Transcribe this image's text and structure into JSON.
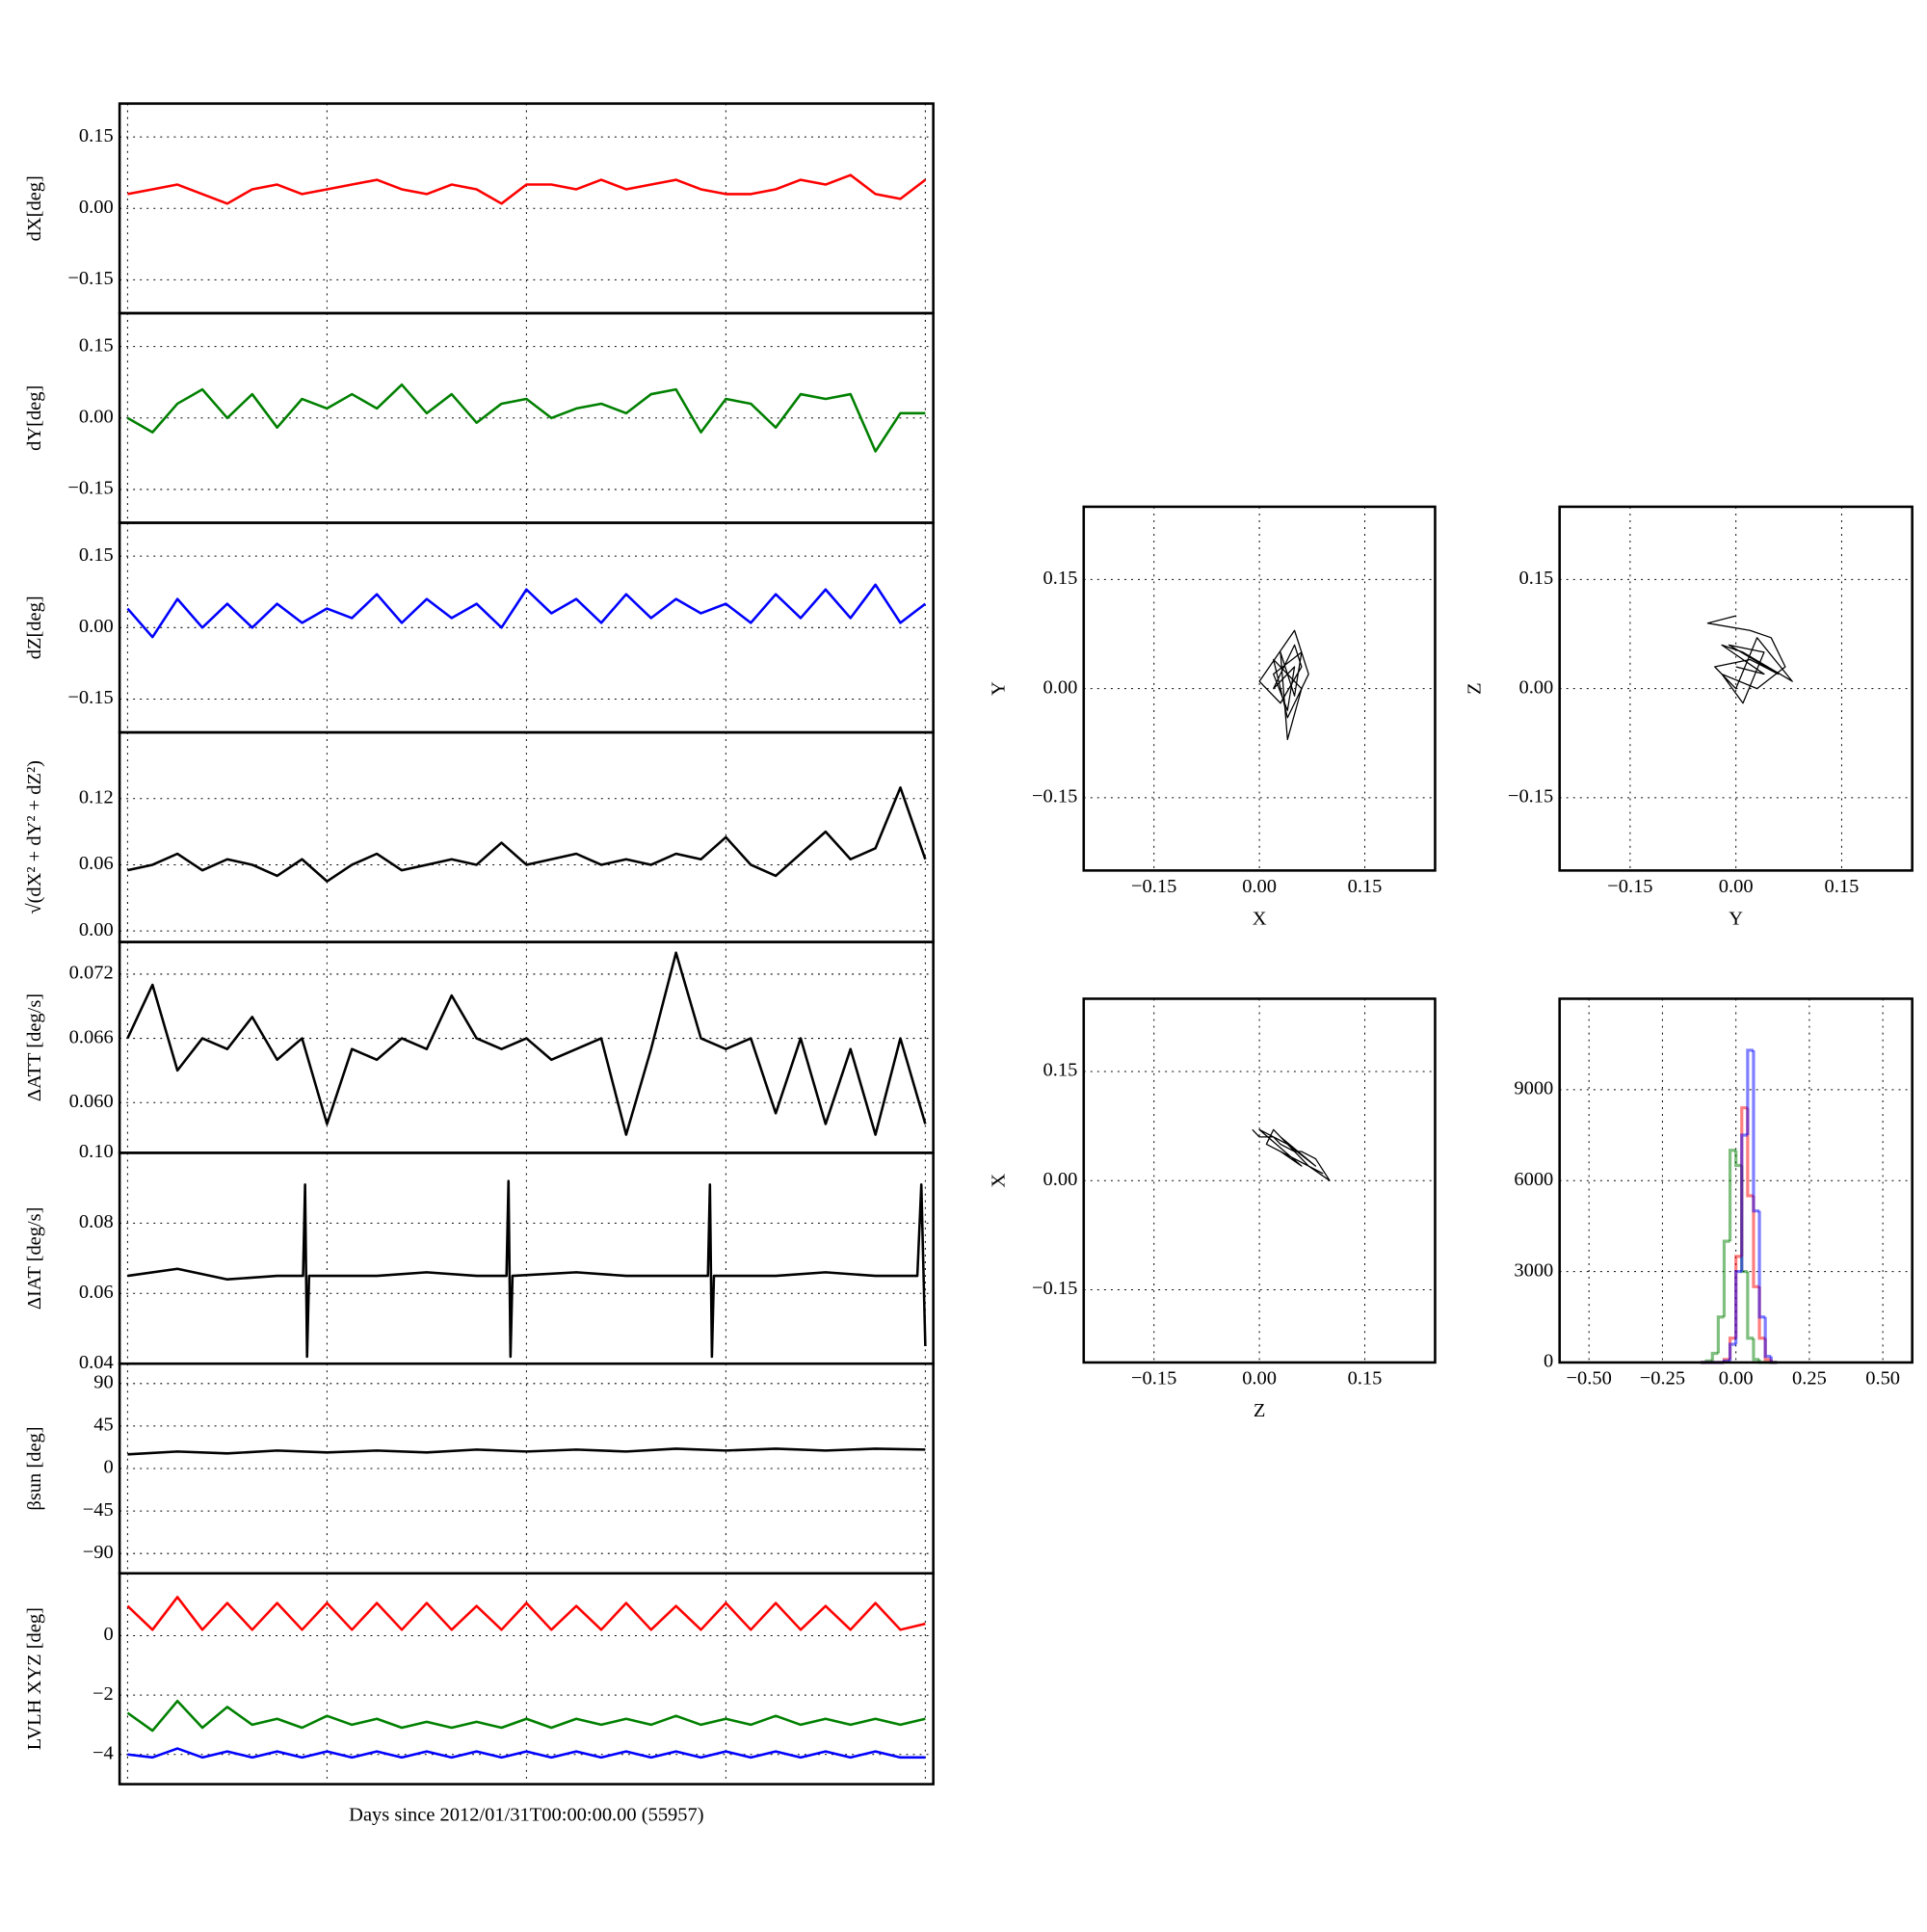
{
  "chart_data": [
    {
      "type": "line",
      "ylabel": "dX[deg]",
      "xlim": [
        -0.04,
        4.04
      ],
      "ylim": [
        -0.22,
        0.22
      ],
      "xticks": [
        0,
        1,
        2,
        3,
        4
      ],
      "xtick_labels": false,
      "yticks": [
        {
          "value": -0.15,
          "label": "−0.15"
        },
        {
          "value": 0,
          "label": "0.00"
        },
        0.15
      ],
      "grid": true,
      "x": [
        0,
        0.125,
        0.25,
        0.375,
        0.5,
        0.625,
        0.75,
        0.875,
        1,
        1.125,
        1.25,
        1.375,
        1.5,
        1.625,
        1.75,
        1.875,
        2,
        2.125,
        2.25,
        2.375,
        2.5,
        2.625,
        2.75,
        2.875,
        3,
        3.125,
        3.25,
        3.375,
        3.5,
        3.625,
        3.75,
        3.875,
        4
      ],
      "series": [
        {
          "color": "#ff0000",
          "values": [
            0.03,
            0.04,
            0.05,
            0.03,
            0.01,
            0.04,
            0.05,
            0.03,
            0.04,
            0.05,
            0.06,
            0.04,
            0.03,
            0.05,
            0.04,
            0.01,
            0.05,
            0.05,
            0.04,
            0.06,
            0.04,
            0.05,
            0.06,
            0.04,
            0.03,
            0.03,
            0.04,
            0.06,
            0.05,
            0.07,
            0.03,
            0.02,
            0.06
          ]
        }
      ]
    },
    {
      "type": "line",
      "ylabel": "dY[deg]",
      "xlim": [
        -0.04,
        4.04
      ],
      "ylim": [
        -0.22,
        0.22
      ],
      "xticks": [
        0,
        1,
        2,
        3,
        4
      ],
      "xtick_labels": false,
      "yticks": [
        {
          "value": -0.15,
          "label": "−0.15"
        },
        {
          "value": 0,
          "label": "0.00"
        },
        0.15
      ],
      "grid": true,
      "x": [
        0,
        0.125,
        0.25,
        0.375,
        0.5,
        0.625,
        0.75,
        0.875,
        1,
        1.125,
        1.25,
        1.375,
        1.5,
        1.625,
        1.75,
        1.875,
        2,
        2.125,
        2.25,
        2.375,
        2.5,
        2.625,
        2.75,
        2.875,
        3,
        3.125,
        3.25,
        3.375,
        3.5,
        3.625,
        3.75,
        3.875,
        4
      ],
      "series": [
        {
          "color": "#008000",
          "values": [
            0.0,
            -0.03,
            0.03,
            0.06,
            0.0,
            0.05,
            -0.02,
            0.04,
            0.02,
            0.05,
            0.02,
            0.07,
            0.01,
            0.05,
            -0.01,
            0.03,
            0.04,
            0.0,
            0.02,
            0.03,
            0.01,
            0.05,
            0.06,
            -0.03,
            0.04,
            0.03,
            -0.02,
            0.05,
            0.04,
            0.05,
            -0.07,
            0.01,
            0.01
          ]
        }
      ]
    },
    {
      "type": "line",
      "ylabel": "dZ[deg]",
      "xlim": [
        -0.04,
        4.04
      ],
      "ylim": [
        -0.22,
        0.22
      ],
      "xticks": [
        0,
        1,
        2,
        3,
        4
      ],
      "xtick_labels": false,
      "yticks": [
        {
          "value": -0.15,
          "label": "−0.15"
        },
        {
          "value": 0,
          "label": "0.00"
        },
        0.15
      ],
      "grid": true,
      "x": [
        0,
        0.125,
        0.25,
        0.375,
        0.5,
        0.625,
        0.75,
        0.875,
        1,
        1.125,
        1.25,
        1.375,
        1.5,
        1.625,
        1.75,
        1.875,
        2,
        2.125,
        2.25,
        2.375,
        2.5,
        2.625,
        2.75,
        2.875,
        3,
        3.125,
        3.25,
        3.375,
        3.5,
        3.625,
        3.75,
        3.875,
        4
      ],
      "series": [
        {
          "color": "#0000ff",
          "values": [
            0.04,
            -0.02,
            0.06,
            0.0,
            0.05,
            0.0,
            0.05,
            0.01,
            0.04,
            0.02,
            0.07,
            0.01,
            0.06,
            0.02,
            0.05,
            0.0,
            0.08,
            0.03,
            0.06,
            0.01,
            0.07,
            0.02,
            0.06,
            0.03,
            0.05,
            0.01,
            0.07,
            0.02,
            0.08,
            0.02,
            0.09,
            0.01,
            0.05
          ]
        }
      ]
    },
    {
      "type": "line",
      "ylabel": "√(dX² + dY² + dZ²)",
      "xlim": [
        -0.04,
        4.04
      ],
      "ylim": [
        -0.01,
        0.18
      ],
      "xticks": [
        0,
        1,
        2,
        3,
        4
      ],
      "xtick_labels": false,
      "yticks": [
        {
          "value": 0,
          "label": "0.00"
        },
        0.06,
        0.12
      ],
      "grid": true,
      "x": [
        0,
        0.125,
        0.25,
        0.375,
        0.5,
        0.625,
        0.75,
        0.875,
        1,
        1.125,
        1.25,
        1.375,
        1.5,
        1.625,
        1.75,
        1.875,
        2,
        2.125,
        2.25,
        2.375,
        2.5,
        2.625,
        2.75,
        2.875,
        3,
        3.125,
        3.25,
        3.375,
        3.5,
        3.625,
        3.75,
        3.875,
        4
      ],
      "series": [
        {
          "color": "#000000",
          "values": [
            0.055,
            0.06,
            0.07,
            0.055,
            0.065,
            0.06,
            0.05,
            0.065,
            0.045,
            0.06,
            0.07,
            0.055,
            0.06,
            0.065,
            0.06,
            0.08,
            0.06,
            0.065,
            0.07,
            0.06,
            0.065,
            0.06,
            0.07,
            0.065,
            0.085,
            0.06,
            0.05,
            0.07,
            0.09,
            0.065,
            0.075,
            0.13,
            0.065
          ]
        }
      ]
    },
    {
      "type": "line",
      "ylabel": "ΔATT [deg/s]",
      "xlim": [
        -0.04,
        4.04
      ],
      "ylim": [
        0.0553,
        0.075
      ],
      "xticks": [
        0,
        1,
        2,
        3,
        4
      ],
      "xtick_labels": false,
      "yticks": [
        {
          "value": 0.06,
          "label": "0.060"
        },
        0.066,
        0.072
      ],
      "grid": true,
      "x": [
        0,
        0.125,
        0.25,
        0.375,
        0.5,
        0.625,
        0.75,
        0.875,
        1,
        1.125,
        1.25,
        1.375,
        1.5,
        1.625,
        1.75,
        1.875,
        2,
        2.125,
        2.25,
        2.375,
        2.5,
        2.625,
        2.75,
        2.875,
        3,
        3.125,
        3.25,
        3.375,
        3.5,
        3.625,
        3.75,
        3.875,
        4
      ],
      "series": [
        {
          "color": "#000000",
          "values": [
            0.066,
            0.071,
            0.063,
            0.066,
            0.065,
            0.068,
            0.064,
            0.066,
            0.058,
            0.065,
            0.064,
            0.066,
            0.065,
            0.07,
            0.066,
            0.065,
            0.066,
            0.064,
            0.065,
            0.066,
            0.057,
            0.065,
            0.074,
            0.066,
            0.065,
            0.066,
            0.059,
            0.066,
            0.058,
            0.065,
            0.057,
            0.066,
            0.058
          ]
        }
      ]
    },
    {
      "type": "line",
      "ylabel": "ΔIAT [deg/s]",
      "xlim": [
        -0.04,
        4.04
      ],
      "ylim": [
        0.04,
        0.1
      ],
      "xticks": [
        0,
        1,
        2,
        3,
        4
      ],
      "xtick_labels": false,
      "yticks": [
        0.04,
        0.06,
        0.08,
        {
          "value": 0.1,
          "label": "0.10"
        }
      ],
      "grid": true,
      "x": [
        0,
        0.25,
        0.5,
        0.75,
        0.88,
        0.89,
        0.9,
        0.91,
        1.25,
        1.5,
        1.75,
        1.9,
        1.91,
        1.92,
        1.93,
        2.25,
        2.5,
        2.75,
        2.91,
        2.92,
        2.93,
        2.94,
        3.25,
        3.5,
        3.75,
        3.96,
        3.98,
        4
      ],
      "series": [
        {
          "color": "#000000",
          "values": [
            0.065,
            0.067,
            0.064,
            0.065,
            0.065,
            0.091,
            0.042,
            0.065,
            0.065,
            0.066,
            0.065,
            0.065,
            0.092,
            0.042,
            0.065,
            0.066,
            0.065,
            0.065,
            0.065,
            0.091,
            0.042,
            0.065,
            0.065,
            0.066,
            0.065,
            0.065,
            0.091,
            0.045
          ]
        }
      ]
    },
    {
      "type": "line",
      "ylabel": "βsun [deg]",
      "xlim": [
        -0.04,
        4.04
      ],
      "ylim": [
        -111,
        111
      ],
      "xticks": [
        0,
        1,
        2,
        3,
        4
      ],
      "xtick_labels": false,
      "yticks": [
        {
          "value": -90,
          "label": "−90"
        },
        {
          "value": -45,
          "label": "−45"
        },
        0,
        45,
        90
      ],
      "grid": true,
      "x": [
        0,
        0.25,
        0.5,
        0.75,
        1,
        1.25,
        1.5,
        1.75,
        2,
        2.25,
        2.5,
        2.75,
        3,
        3.25,
        3.5,
        3.75,
        4
      ],
      "series": [
        {
          "color": "#000000",
          "values": [
            15,
            18,
            16,
            19,
            17,
            19,
            17,
            20,
            18,
            20,
            18,
            21,
            19,
            21,
            19,
            21,
            20
          ]
        }
      ]
    },
    {
      "type": "line",
      "ylabel": "LVLH XYZ [deg]",
      "xlabel": "Days since 2012/01/31T00:00:00.00 (55957)",
      "xlim": [
        -0.04,
        4.04
      ],
      "ylim": [
        -5.0,
        2.1
      ],
      "xticks": [
        0,
        1,
        2,
        3,
        4
      ],
      "xtick_labels": false,
      "yticks": [
        {
          "value": -4,
          "label": "−4"
        },
        {
          "value": -2,
          "label": "−2"
        },
        0
      ],
      "grid": true,
      "x": [
        0,
        0.125,
        0.25,
        0.375,
        0.5,
        0.625,
        0.75,
        0.875,
        1,
        1.125,
        1.25,
        1.375,
        1.5,
        1.625,
        1.75,
        1.875,
        2,
        2.125,
        2.25,
        2.375,
        2.5,
        2.625,
        2.75,
        2.875,
        3,
        3.125,
        3.25,
        3.375,
        3.5,
        3.625,
        3.75,
        3.875,
        4
      ],
      "series": [
        {
          "color": "#ff0000",
          "values": [
            1.0,
            0.2,
            1.3,
            0.2,
            1.1,
            0.2,
            1.1,
            0.2,
            1.1,
            0.2,
            1.1,
            0.2,
            1.1,
            0.2,
            1.0,
            0.2,
            1.1,
            0.2,
            1.0,
            0.2,
            1.1,
            0.2,
            1.0,
            0.2,
            1.1,
            0.2,
            1.1,
            0.2,
            1.0,
            0.2,
            1.1,
            0.2,
            0.4
          ]
        },
        {
          "color": "#008000",
          "values": [
            -2.6,
            -3.2,
            -2.2,
            -3.1,
            -2.4,
            -3.0,
            -2.8,
            -3.1,
            -2.7,
            -3.0,
            -2.8,
            -3.1,
            -2.9,
            -3.1,
            -2.9,
            -3.1,
            -2.8,
            -3.1,
            -2.8,
            -3.0,
            -2.8,
            -3.0,
            -2.7,
            -3.0,
            -2.8,
            -3.0,
            -2.7,
            -3.0,
            -2.8,
            -3.0,
            -2.8,
            -3.0,
            -2.8
          ]
        },
        {
          "color": "#0000ff",
          "values": [
            -4.0,
            -4.1,
            -3.8,
            -4.1,
            -3.9,
            -4.1,
            -3.9,
            -4.1,
            -3.9,
            -4.1,
            -3.9,
            -4.1,
            -3.9,
            -4.1,
            -3.9,
            -4.1,
            -3.9,
            -4.1,
            -3.9,
            -4.1,
            -3.9,
            -4.1,
            -3.9,
            -4.1,
            -3.9,
            -4.1,
            -3.9,
            -4.1,
            -3.9,
            -4.1,
            -3.9,
            -4.1,
            -4.1
          ]
        }
      ]
    },
    {
      "type": "line",
      "xlabel": "X",
      "ylabel": "Y",
      "xlim": [
        -0.25,
        0.25
      ],
      "ylim": [
        -0.25,
        0.25
      ],
      "xticks": [
        {
          "value": -0.15,
          "label": "−0.15"
        },
        {
          "value": 0,
          "label": "0.00"
        },
        0.15
      ],
      "yticks": [
        {
          "value": -0.15,
          "label": "−0.15"
        },
        {
          "value": 0,
          "label": "0.00"
        },
        0.15
      ],
      "grid": true,
      "x": [
        0.04,
        0.02,
        0.05,
        0.06,
        0.03,
        0.0,
        0.05,
        0.07,
        0.04,
        0.02,
        0.06,
        0.04,
        0.03,
        0.05,
        0.06,
        0.02,
        0.04,
        0.05,
        0.03,
        0.04
      ],
      "series": [
        {
          "color": "#000000",
          "values": [
            0.02,
            0.0,
            0.06,
            0.03,
            -0.02,
            0.01,
            0.08,
            0.02,
            -0.04,
            0.04,
            0.0,
            -0.07,
            0.05,
            -0.01,
            0.05,
            0.02,
            -0.03,
            0.03,
            0.01,
            0.02
          ]
        }
      ]
    },
    {
      "type": "line",
      "xlabel": "Y",
      "ylabel": "Z",
      "xlim": [
        -0.25,
        0.25
      ],
      "ylim": [
        -0.25,
        0.25
      ],
      "xticks": [
        {
          "value": -0.15,
          "label": "−0.15"
        },
        {
          "value": 0,
          "label": "0.00"
        },
        0.15
      ],
      "yticks": [
        {
          "value": -0.15,
          "label": "−0.15"
        },
        {
          "value": 0,
          "label": "0.00"
        },
        0.15
      ],
      "grid": true,
      "x": [
        0.0,
        -0.04,
        0.02,
        0.05,
        0.07,
        0.03,
        -0.02,
        0.01,
        0.04,
        -0.01,
        0.06,
        0.02,
        -0.03,
        0.0,
        0.03,
        0.08,
        0.01,
        -0.02,
        0.04,
        0.0
      ],
      "series": [
        {
          "color": "#000000",
          "values": [
            0.1,
            0.09,
            0.08,
            0.07,
            0.03,
            0.0,
            0.02,
            -0.02,
            0.05,
            0.06,
            0.02,
            0.04,
            0.03,
            0.0,
            0.07,
            0.01,
            0.05,
            0.06,
            0.02,
            0.03
          ]
        }
      ]
    },
    {
      "type": "line",
      "xlabel": "Z",
      "ylabel": "X",
      "xlim": [
        -0.25,
        0.25
      ],
      "ylim": [
        -0.25,
        0.25
      ],
      "xticks": [
        {
          "value": -0.15,
          "label": "−0.15"
        },
        {
          "value": 0,
          "label": "0.00"
        },
        0.15
      ],
      "yticks": [
        {
          "value": -0.15,
          "label": "−0.15"
        },
        {
          "value": 0,
          "label": "0.00"
        },
        0.15
      ],
      "grid": true,
      "x": [
        -0.01,
        0.0,
        0.02,
        0.03,
        0.05,
        0.06,
        0.08,
        0.1,
        0.07,
        0.04,
        0.02,
        0.01,
        0.05,
        0.09,
        0.03,
        0.06,
        0.0,
        0.04,
        0.08,
        0.03
      ],
      "series": [
        {
          "color": "#000000",
          "values": [
            0.07,
            0.06,
            0.06,
            0.05,
            0.04,
            0.04,
            0.03,
            0.0,
            0.02,
            0.05,
            0.07,
            0.05,
            0.03,
            0.01,
            0.04,
            0.02,
            0.07,
            0.05,
            0.02,
            0.06
          ]
        }
      ]
    },
    {
      "type": "histogram",
      "xlim": [
        -0.6,
        0.6
      ],
      "ylim": [
        0,
        12000
      ],
      "alpha": 0.5,
      "xticks": [
        {
          "value": -0.5,
          "label": "−0.50"
        },
        {
          "value": -0.25,
          "label": "−0.25"
        },
        {
          "value": 0,
          "label": "0.00"
        },
        0.25,
        {
          "value": 0.5,
          "label": "0.50"
        }
      ],
      "yticks": [
        0,
        3000,
        6000,
        9000
      ],
      "grid": true,
      "bins": [
        -0.12,
        -0.1,
        -0.08,
        -0.06,
        -0.04,
        -0.02,
        0,
        0.02,
        0.04,
        0.06,
        0.08,
        0.1,
        0.12,
        0.14
      ],
      "series": [
        {
          "color": "#008000",
          "values": [
            0,
            50,
            300,
            1500,
            4000,
            7000,
            6500,
            3000,
            800,
            100,
            0,
            0,
            0
          ]
        },
        {
          "color": "#ff0000",
          "values": [
            0,
            0,
            0,
            0,
            100,
            800,
            3500,
            8400,
            5500,
            2500,
            800,
            100,
            0
          ]
        },
        {
          "color": "#0000ff",
          "values": [
            0,
            0,
            0,
            0,
            50,
            600,
            3000,
            7500,
            10300,
            5000,
            1500,
            200,
            0
          ]
        }
      ]
    }
  ]
}
